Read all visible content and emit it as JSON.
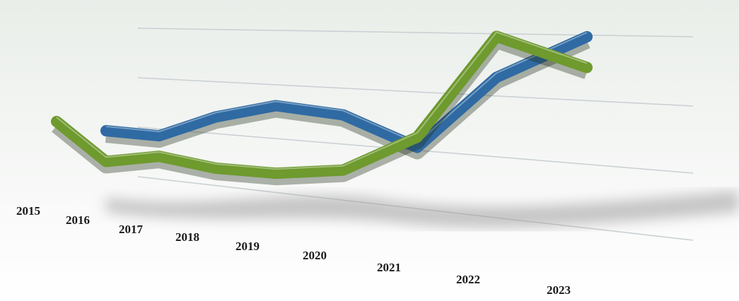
{
  "chart_data": {
    "type": "line",
    "categories": [
      "2015",
      "2016",
      "2017",
      "2018",
      "2019",
      "2020",
      "2021",
      "2022",
      "2023"
    ],
    "series": [
      {
        "color": "#2f6aa3",
        "values": [
          null,
          20,
          22,
          35,
          45,
          45,
          35,
          75,
          100
        ]
      },
      {
        "color": "#6e9a2e",
        "values": [
          20,
          5,
          12,
          10,
          12,
          18,
          40,
          95,
          85
        ]
      }
    ]
  }
}
